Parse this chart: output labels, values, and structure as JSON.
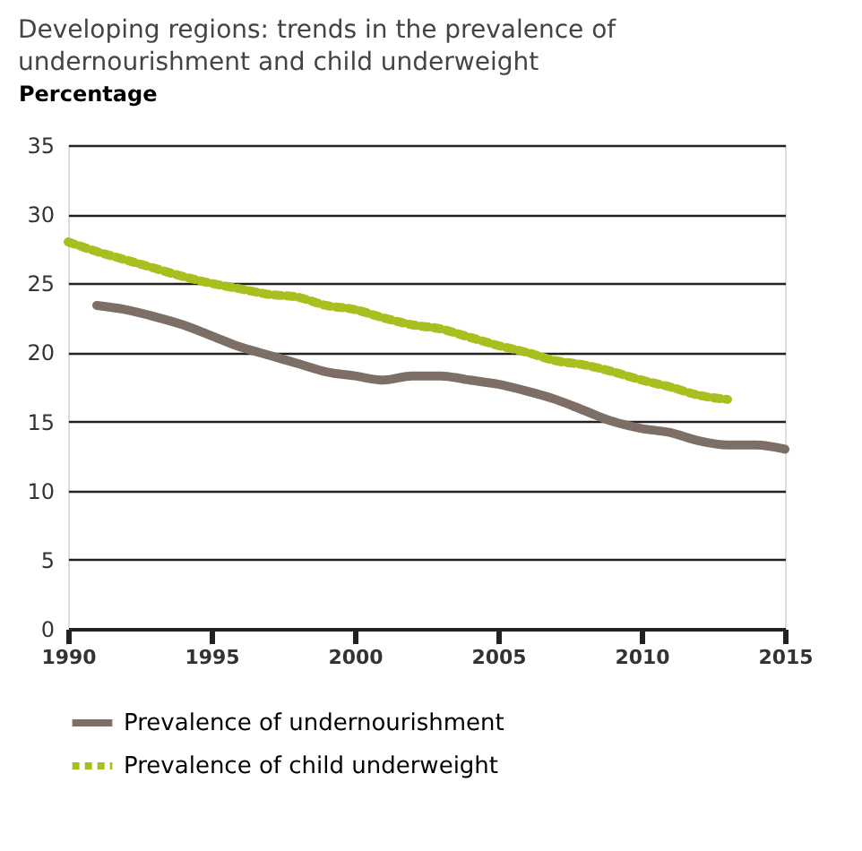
{
  "chart_data": {
    "type": "line",
    "title": "Developing regions: trends in the prevalence of undernourishment and child underweight",
    "ylabel": "Percentage",
    "xlim": [
      1990,
      2015
    ],
    "xticks": [
      1990,
      1995,
      2000,
      2005,
      2010,
      2015
    ],
    "ylim": [
      0,
      35
    ],
    "yticks": [
      0,
      5,
      10,
      15,
      20,
      25,
      30,
      35
    ],
    "grid": "y",
    "legend": "bottom",
    "series": [
      {
        "name": "Prevalence of undernourishment",
        "color": "#7d6f66",
        "line_style": "solid",
        "x": [
          1991,
          1992,
          1993,
          1994,
          1995,
          1996,
          1997,
          1998,
          1999,
          2000,
          2001,
          2002,
          2003,
          2004,
          2005,
          2006,
          2007,
          2008,
          2009,
          2010,
          2011,
          2012,
          2013,
          2014,
          2015
        ],
        "values": [
          23.4,
          23.1,
          22.6,
          22.0,
          21.2,
          20.4,
          19.8,
          19.2,
          18.6,
          18.3,
          18.0,
          18.3,
          18.3,
          18.0,
          17.7,
          17.2,
          16.6,
          15.8,
          15.0,
          14.5,
          14.2,
          13.6,
          13.3,
          13.3,
          13.0
        ]
      },
      {
        "name": "Prevalence of child underweight",
        "color": "#a9bf1f",
        "line_style": "dotted",
        "x": [
          1990,
          1991,
          1992,
          1993,
          1994,
          1995,
          1996,
          1997,
          1998,
          1999,
          2000,
          2001,
          2002,
          2003,
          2004,
          2005,
          2006,
          2007,
          2008,
          2009,
          2010,
          2011,
          2012,
          2013
        ],
        "values": [
          28.0,
          27.3,
          26.7,
          26.1,
          25.5,
          25.0,
          24.6,
          24.2,
          24.0,
          23.4,
          23.1,
          22.5,
          22.0,
          21.7,
          21.1,
          20.5,
          20.0,
          19.4,
          19.1,
          18.6,
          18.0,
          17.5,
          16.9,
          16.6
        ]
      }
    ]
  }
}
